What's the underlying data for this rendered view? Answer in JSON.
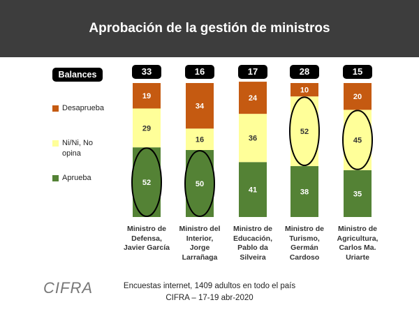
{
  "header": {
    "title": "Aprobación de la gestión de ministros"
  },
  "legend": {
    "title": "Balances",
    "items": [
      {
        "label": "Desaprueba",
        "color": "#c55a11"
      },
      {
        "label": "Ni/Ni, No opina",
        "color": "#ffff99"
      },
      {
        "label": "Aprueba",
        "color": "#548235"
      }
    ]
  },
  "chart_data": {
    "type": "bar",
    "stacked": true,
    "title": "Aprobación de la gestión de ministros",
    "categories": [
      "Ministro de Defensa, Javier García",
      "Ministro del Interior, Jorge Larrañaga",
      "Ministro de Educación, Pablo da Silveira",
      "Ministro de Turismo, Germán Cardoso",
      "Ministro de Agricultura, Carlos Ma. Uriarte"
    ],
    "category_lines": [
      [
        "Ministro de",
        "Defensa,",
        "Javier García"
      ],
      [
        "Ministro del",
        "Interior,",
        "Jorge",
        "Larrañaga"
      ],
      [
        "Ministro de",
        "Educación,",
        "Pablo da",
        "Silveira"
      ],
      [
        "Ministro de",
        "Turismo,",
        "Germán",
        "Cardoso"
      ],
      [
        "Ministro de",
        "Agricultura,",
        "Carlos Ma.",
        "Uriarte"
      ]
    ],
    "series": [
      {
        "name": "Aprueba",
        "color": "#548235",
        "label_color": "#ffffff",
        "values": [
          52,
          50,
          41,
          38,
          35
        ]
      },
      {
        "name": "Ni/Ni, No opina",
        "color": "#ffff99",
        "label_color": "#333333",
        "values": [
          29,
          16,
          36,
          52,
          45
        ]
      },
      {
        "name": "Desaprueba",
        "color": "#c55a11",
        "label_color": "#ffffff",
        "values": [
          19,
          34,
          24,
          10,
          20
        ]
      }
    ],
    "balances": [
      33,
      16,
      17,
      28,
      15
    ],
    "highlighted": [
      {
        "category_index": 0,
        "series": "Aprueba"
      },
      {
        "category_index": 1,
        "series": "Aprueba"
      },
      {
        "category_index": 3,
        "series": "Ni/Ni, No opina"
      },
      {
        "category_index": 4,
        "series": "Ni/Ni, No opina"
      }
    ],
    "ylim": [
      0,
      100
    ],
    "grid": false
  },
  "footer": {
    "line1": "Encuestas internet, 1409 adultos en todo el país",
    "line2": "CIFRA – 17-19 abr-2020",
    "logo": "CIFRA"
  }
}
